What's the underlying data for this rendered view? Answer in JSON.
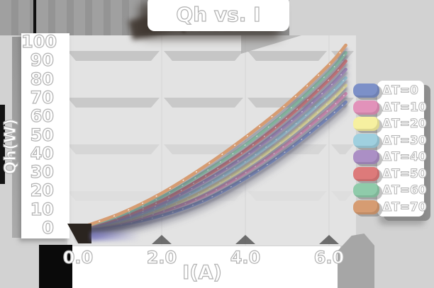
{
  "window": {
    "title": "Qh vs. I"
  },
  "colors": {
    "page_bg": "#d2d2d2",
    "plot_bg": "#e3e3e3",
    "grid_band_strong": "#c7c7c7",
    "grid_band_faint": "#dcdcdc",
    "label_fill": "#ffffff",
    "label_outline": "#b2b2b2",
    "shadow": "#8d8d8d"
  },
  "chart_data": {
    "type": "line",
    "title": "Qh vs. I",
    "xlabel": "I(A)",
    "ylabel": "Qh(W)",
    "xlim": [
      0,
      6.8
    ],
    "ylim": [
      0,
      100
    ],
    "xtick_labels": [
      "0.0",
      "2.0",
      "4.0",
      "6.0"
    ],
    "xtick_values": [
      0,
      2,
      4,
      6
    ],
    "ytick_values": [
      0,
      10,
      20,
      30,
      40,
      50,
      60,
      70,
      80,
      90,
      100
    ],
    "grid": "horizontal-bands",
    "legend_position": "right",
    "x": [
      0,
      1,
      2,
      3,
      4,
      5,
      6,
      6.4
    ],
    "series": [
      {
        "name": "ΔT=0",
        "color": "#7c90c8",
        "values": [
          0,
          2,
          7,
          15,
          27,
          42,
          60,
          68
        ]
      },
      {
        "name": "ΔT=10",
        "color": "#e292ba",
        "values": [
          0,
          3,
          9,
          17.5,
          30,
          45.5,
          64,
          72.5
        ]
      },
      {
        "name": "ΔT=20",
        "color": "#f6f0a0",
        "values": [
          0,
          3.5,
          10.5,
          20,
          33,
          49,
          68,
          77
        ]
      },
      {
        "name": "ΔT=30",
        "color": "#9fd0df",
        "values": [
          0,
          4.5,
          12,
          22.5,
          36,
          52.5,
          72,
          81
        ]
      },
      {
        "name": "ΔT=40",
        "color": "#ab8fc5",
        "values": [
          0,
          5,
          13.5,
          25,
          39,
          56,
          76,
          85.5
        ]
      },
      {
        "name": "ΔT=50",
        "color": "#dd7a7a",
        "values": [
          0,
          6,
          15,
          27.5,
          42,
          59.5,
          80,
          90
        ]
      },
      {
        "name": "ΔT=60",
        "color": "#8fcbaa",
        "values": [
          0,
          7,
          17,
          30,
          45,
          63,
          84,
          94.5
        ]
      },
      {
        "name": "ΔT=70",
        "color": "#d69c72",
        "values": [
          0,
          8,
          19,
          33,
          49,
          67,
          88,
          98.5
        ]
      }
    ]
  }
}
